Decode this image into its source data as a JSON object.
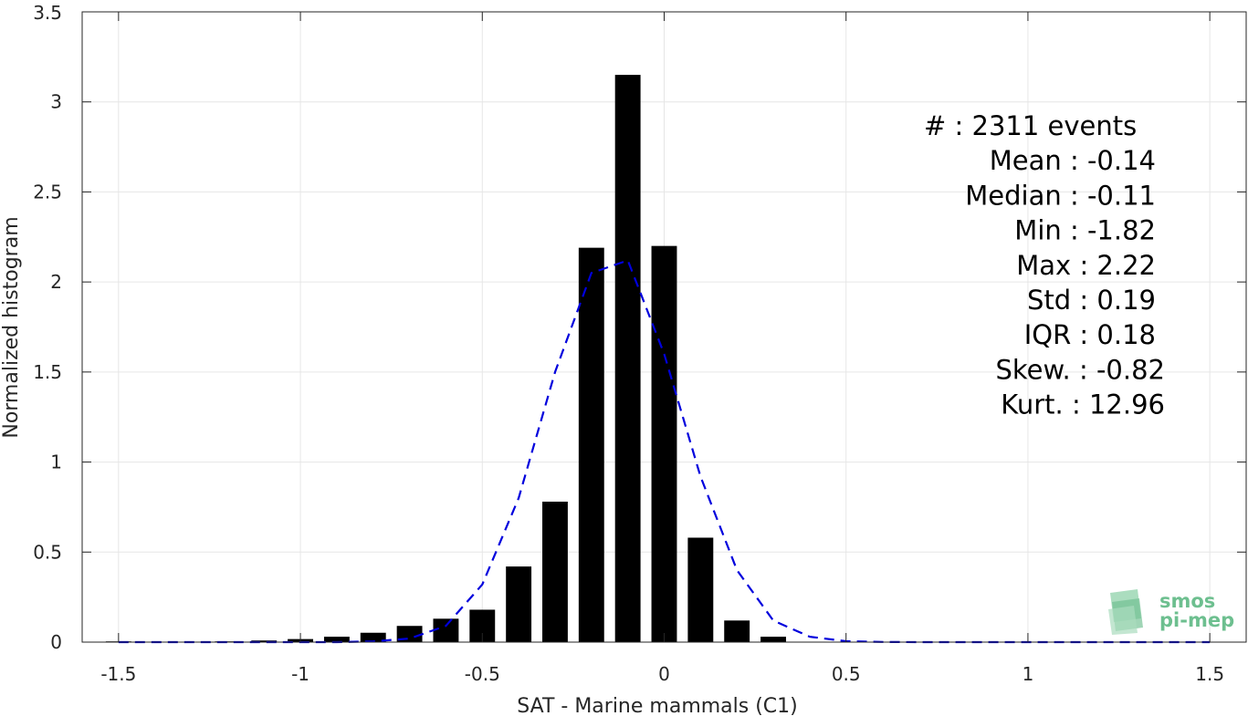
{
  "chart_data": {
    "type": "bar",
    "xlabel": "SAT - Marine mammals (C1)",
    "ylabel": "Normalized histogram",
    "xlim": [
      -1.6,
      1.6
    ],
    "ylim": [
      0,
      3.5
    ],
    "grid": true,
    "xticks": [
      -1.5,
      -1,
      -0.5,
      0,
      0.5,
      1,
      1.5
    ],
    "xtick_labels": [
      "-1.5",
      "-1",
      "-0.5",
      "0",
      "0.5",
      "1",
      "1.5"
    ],
    "yticks": [
      0,
      0.5,
      1,
      1.5,
      2,
      2.5,
      3,
      3.5
    ],
    "ytick_labels": [
      "0",
      "0.5",
      "1",
      "1.5",
      "2",
      "2.5",
      "3",
      "3.5"
    ],
    "bin_width": 0.1,
    "bar_color": "#000000",
    "bars": {
      "x": [
        -1.5,
        -1.4,
        -1.3,
        -1.2,
        -1.1,
        -1.0,
        -0.9,
        -0.8,
        -0.7,
        -0.6,
        -0.5,
        -0.4,
        -0.3,
        -0.2,
        -0.1,
        0.0,
        0.1,
        0.2,
        0.3,
        0.4,
        0.5,
        0.6,
        0.7,
        0.8,
        0.9,
        1.0,
        1.1,
        1.2,
        1.3,
        1.4,
        1.5
      ],
      "values": [
        0.004,
        0.0,
        0.0,
        0.004,
        0.009,
        0.017,
        0.03,
        0.052,
        0.09,
        0.13,
        0.18,
        0.42,
        0.78,
        2.19,
        3.15,
        2.2,
        0.58,
        0.12,
        0.03,
        0.0,
        0.0,
        0.0,
        0.0,
        0.0,
        0.0,
        0.0,
        0.0,
        0.0,
        0.0,
        0.0,
        0.0
      ]
    },
    "fit_curve": {
      "style": "dashed",
      "color": "#0000dd",
      "x": [
        -1.5,
        -1.4,
        -1.3,
        -1.2,
        -1.1,
        -1.0,
        -0.9,
        -0.8,
        -0.7,
        -0.6,
        -0.5,
        -0.4,
        -0.3,
        -0.2,
        -0.1,
        0.0,
        0.1,
        0.2,
        0.3,
        0.4,
        0.5,
        0.6,
        0.7,
        0.8,
        0.9,
        1.0,
        1.1,
        1.2,
        1.3,
        1.4,
        1.5
      ],
      "values": [
        0.0,
        0.0,
        0.0,
        0.0,
        0.0,
        0.0,
        0.0,
        0.004,
        0.02,
        0.09,
        0.32,
        0.8,
        1.5,
        2.05,
        2.12,
        1.6,
        0.92,
        0.4,
        0.12,
        0.03,
        0.005,
        0.001,
        0.0,
        0.0,
        0.0,
        0.0,
        0.0,
        0.0,
        0.0,
        0.0,
        0.0
      ]
    },
    "stats": [
      {
        "label": "#  : 2311 events",
        "anchor": "start",
        "x_offset": 0
      },
      {
        "label": "Mean : -0.14",
        "anchor": "end",
        "x_offset": 0
      },
      {
        "label": "Median : -0.11",
        "anchor": "end",
        "x_offset": 0
      },
      {
        "label": "Min : -1.82",
        "anchor": "end",
        "x_offset": 0
      },
      {
        "label": "Max : 2.22",
        "anchor": "end",
        "x_offset": 0
      },
      {
        "label": "Std : 0.19",
        "anchor": "end",
        "x_offset": 0
      },
      {
        "label": "IQR : 0.18",
        "anchor": "end",
        "x_offset": 0
      },
      {
        "label": "Skew. : -0.82",
        "anchor": "end",
        "x_offset": 1
      },
      {
        "label": "Kurt. : 12.96",
        "anchor": "end",
        "x_offset": 1
      }
    ]
  },
  "logo": {
    "line1": "smos",
    "line2": "pi-mep",
    "color": "#6dbf8f"
  }
}
